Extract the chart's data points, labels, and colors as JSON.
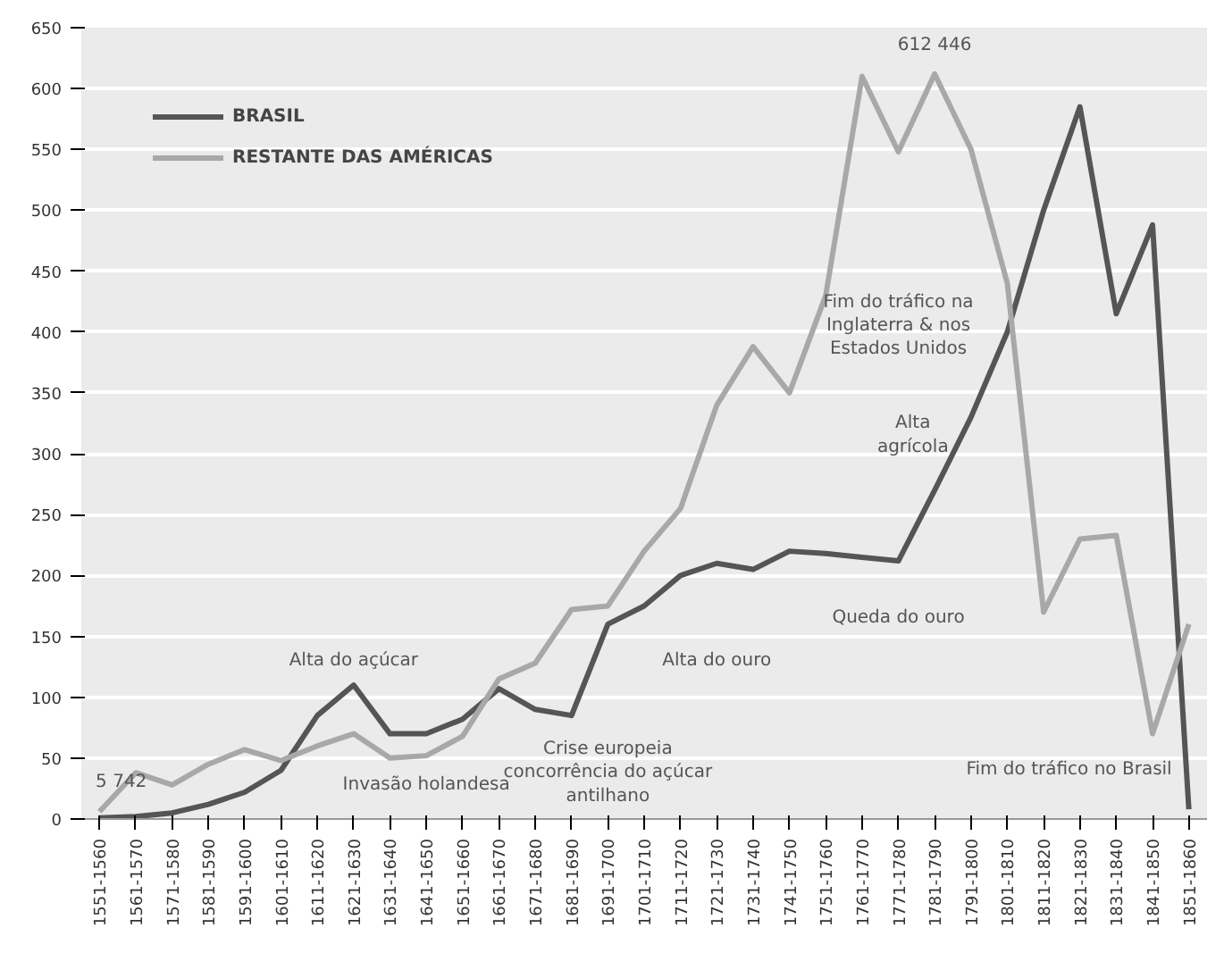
{
  "chart_data": {
    "type": "line",
    "categories": [
      "1551-1560",
      "1561-1570",
      "1571-1580",
      "1581-1590",
      "1591-1600",
      "1601-1610",
      "1611-1620",
      "1621-1630",
      "1631-1640",
      "1641-1650",
      "1651-1660",
      "1661-1670",
      "1671-1680",
      "1681-1690",
      "1691-1700",
      "1701-1710",
      "1711-1720",
      "1721-1730",
      "1731-1740",
      "1741-1750",
      "1751-1760",
      "1761-1770",
      "1771-1780",
      "1781-1790",
      "1791-1800",
      "1801-1810",
      "1811-1820",
      "1821-1830",
      "1831-1840",
      "1841-1850",
      "1851-1860"
    ],
    "series": [
      {
        "name": "BRASIL",
        "color": "#555555",
        "values": [
          1,
          2,
          5,
          12,
          22,
          40,
          85,
          110,
          70,
          70,
          82,
          107,
          90,
          85,
          160,
          175,
          200,
          210,
          205,
          220,
          218,
          215,
          212,
          270,
          330,
          400,
          500,
          585,
          415,
          488,
          8
        ]
      },
      {
        "name": "RESTANTE DAS AMÉRICAS",
        "color": "#a8a8a8",
        "values": [
          6,
          38,
          28,
          45,
          57,
          48,
          60,
          70,
          50,
          52,
          68,
          115,
          128,
          172,
          175,
          220,
          255,
          340,
          388,
          350,
          430,
          610,
          548,
          612,
          550,
          440,
          170,
          230,
          233,
          70,
          160
        ]
      }
    ],
    "ylim": [
      0,
      650
    ],
    "yticks": [
      0,
      50,
      100,
      150,
      200,
      250,
      300,
      350,
      400,
      450,
      500,
      550,
      600,
      650
    ],
    "grid": "y",
    "legend": "top left",
    "line_style": "solid",
    "annotations": [
      "5 742",
      "612 446",
      "Alta do açúcar",
      "Invasão holandesa",
      "Crise europeia\nconcorrência do açúcar\nantilhano",
      "Alta do ouro",
      "Queda do ouro",
      "Fim do tráfico na\nInglaterra & nos\nEstados Unidos",
      "Alta\nagrícola",
      "Fim do tráfico no Brasil"
    ]
  }
}
